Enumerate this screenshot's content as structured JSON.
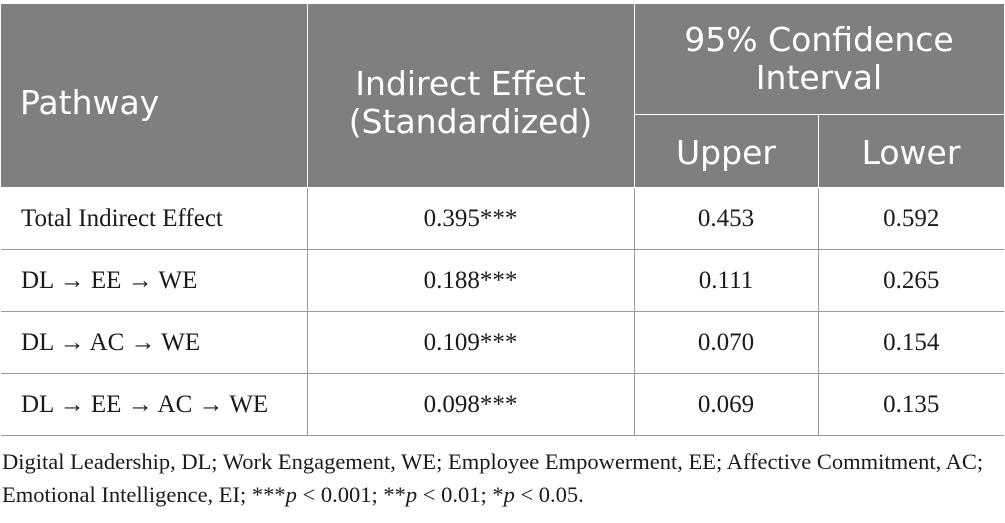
{
  "table": {
    "headers": {
      "pathway": "Pathway",
      "indirect_effect": "Indirect Effect (Standardized)",
      "ci": "95% Confidence Interval",
      "upper": "Upper",
      "lower": "Lower"
    },
    "rows": [
      {
        "pathway": "Total Indirect Effect",
        "effect": "0.395***",
        "upper": "0.453",
        "lower": "0.592"
      },
      {
        "pathway": "DL → EE → WE",
        "effect": "0.188***",
        "upper": "0.111",
        "lower": "0.265"
      },
      {
        "pathway": "DL → AC → WE",
        "effect": "0.109***",
        "upper": "0.070",
        "lower": "0.154"
      },
      {
        "pathway": "DL → EE → AC → WE",
        "effect": "0.098***",
        "upper": "0.069",
        "lower": "0.135"
      }
    ]
  },
  "footnote": {
    "abbreviations": "Digital Leadership, DL; Work Engagement, WE; Employee Empowerment, EE; Affective Commitment, AC; Emotional Intelligence, EI;",
    "sig1": "***p < 0.001;",
    "sig2": "**p < 0.01;",
    "sig3": "*p < 0.05."
  }
}
